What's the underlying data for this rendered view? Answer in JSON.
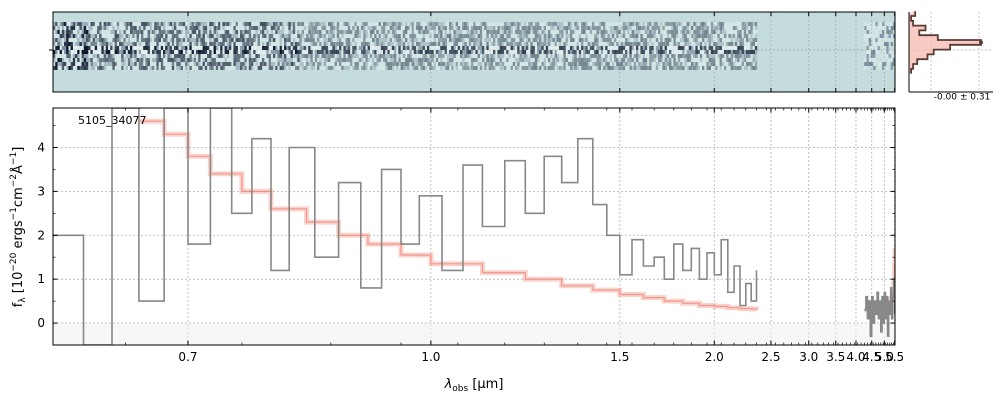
{
  "chart_data": [
    {
      "panel": "2d-spectrum",
      "type": "heatmap",
      "background_color": "#c5dcdc",
      "blue_side_coverage_um": [
        0.6,
        2.35
      ],
      "red_side_coverage_um": [
        4.25,
        5.5
      ],
      "trace_color": "#1a2440"
    },
    {
      "panel": "residual-histogram",
      "type": "histogram",
      "annotation": "-0.00 ± 0.31",
      "step_color": "#5a3a32",
      "fill_color": "#f5b5ac",
      "profile": [
        [
          0.02,
          3
        ],
        [
          0.08,
          1
        ],
        [
          0.14,
          2
        ],
        [
          0.2,
          8
        ],
        [
          0.26,
          5
        ],
        [
          0.32,
          14
        ],
        [
          0.38,
          35
        ],
        [
          0.44,
          20
        ],
        [
          0.5,
          12
        ],
        [
          0.56,
          9
        ],
        [
          0.62,
          4
        ],
        [
          0.68,
          2
        ],
        [
          0.74,
          1
        ]
      ]
    },
    {
      "panel": "1d-spectrum",
      "type": "line",
      "label": "5105_34077",
      "xlabel_main": "λ",
      "xlabel_sub": "obs",
      "xlabel_unit": " [μm]",
      "ylabel": "f_λ [10^-20 ergs^-1 cm^-2 Å^-1]",
      "xlim": [
        0.6,
        5.52
      ],
      "ylim": [
        -0.5,
        4.9
      ],
      "x_scale": "reciprocal",
      "x_ticks": [
        "0.7",
        "1.0",
        "1.5",
        "2.0",
        "2.5",
        "3.0",
        "3.5",
        "4.0",
        "4.5",
        "5.0",
        "5.5"
      ],
      "y_ticks": [
        "0",
        "1",
        "2",
        "3",
        "4"
      ],
      "grid": true,
      "series": [
        {
          "color": "#888888",
          "segments": [
            [
              [
                0.6,
                2.0
              ],
              [
                0.62,
                -0.5
              ],
              [
                0.64,
                4.9
              ],
              [
                0.66,
                0.5
              ],
              [
                0.68,
                4.9
              ],
              [
                0.7,
                1.8
              ],
              [
                0.72,
                4.9
              ],
              [
                0.74,
                2.5
              ],
              [
                0.76,
                4.2
              ],
              [
                0.78,
                1.2
              ],
              [
                0.8,
                4.0
              ],
              [
                0.83,
                1.5
              ],
              [
                0.86,
                3.2
              ],
              [
                0.89,
                0.8
              ],
              [
                0.92,
                3.5
              ],
              [
                0.95,
                1.8
              ],
              [
                0.98,
                2.9
              ],
              [
                1.02,
                1.2
              ],
              [
                1.06,
                3.6
              ],
              [
                1.1,
                2.2
              ],
              [
                1.15,
                3.7
              ],
              [
                1.2,
                2.5
              ],
              [
                1.25,
                3.8
              ],
              [
                1.3,
                3.2
              ],
              [
                1.35,
                4.2
              ],
              [
                1.4,
                2.7
              ],
              [
                1.45,
                2.0
              ],
              [
                1.5,
                1.1
              ],
              [
                1.55,
                1.9
              ],
              [
                1.6,
                1.3
              ],
              [
                1.65,
                1.5
              ],
              [
                1.7,
                1.0
              ],
              [
                1.75,
                1.8
              ],
              [
                1.8,
                1.2
              ],
              [
                1.85,
                1.7
              ],
              [
                1.9,
                1.0
              ],
              [
                1.95,
                1.6
              ],
              [
                2.0,
                1.1
              ],
              [
                2.05,
                1.9
              ],
              [
                2.1,
                0.7
              ],
              [
                2.15,
                1.3
              ],
              [
                2.2,
                0.4
              ],
              [
                2.25,
                0.9
              ],
              [
                2.3,
                0.5
              ],
              [
                2.35,
                1.2
              ]
            ],
            [
              [
                4.25,
                0.3
              ],
              [
                4.3,
                0.6
              ],
              [
                4.35,
                0.1
              ],
              [
                4.4,
                0.5
              ],
              [
                4.45,
                -0.3
              ],
              [
                4.5,
                0.6
              ],
              [
                4.55,
                0.0
              ],
              [
                4.6,
                0.5
              ],
              [
                4.65,
                0.2
              ],
              [
                4.7,
                0.7
              ],
              [
                4.75,
                0.1
              ],
              [
                4.8,
                0.5
              ],
              [
                4.85,
                -0.2
              ],
              [
                4.9,
                0.6
              ],
              [
                4.95,
                0.0
              ],
              [
                5.0,
                0.7
              ],
              [
                5.05,
                0.1
              ],
              [
                5.1,
                0.6
              ],
              [
                5.15,
                -0.3
              ],
              [
                5.2,
                0.5
              ],
              [
                5.25,
                0.2
              ],
              [
                5.3,
                0.8
              ],
              [
                5.35,
                0.1
              ],
              [
                5.4,
                0.6
              ],
              [
                5.45,
                1.0
              ],
              [
                5.5,
                0.2
              ]
            ]
          ]
        },
        {
          "color": "#f08070",
          "segments": [
            [
              [
                0.66,
                4.6
              ],
              [
                0.68,
                4.3
              ],
              [
                0.7,
                3.8
              ],
              [
                0.72,
                3.4
              ],
              [
                0.75,
                3.0
              ],
              [
                0.78,
                2.6
              ],
              [
                0.82,
                2.3
              ],
              [
                0.86,
                2.0
              ],
              [
                0.9,
                1.8
              ],
              [
                0.95,
                1.55
              ],
              [
                1.0,
                1.35
              ],
              [
                1.1,
                1.15
              ],
              [
                1.2,
                1.0
              ],
              [
                1.3,
                0.85
              ],
              [
                1.4,
                0.75
              ],
              [
                1.5,
                0.65
              ],
              [
                1.6,
                0.58
              ],
              [
                1.7,
                0.5
              ],
              [
                1.8,
                0.45
              ],
              [
                1.9,
                0.4
              ],
              [
                2.0,
                0.38
              ],
              [
                2.1,
                0.35
              ],
              [
                2.2,
                0.33
              ],
              [
                2.3,
                0.32
              ],
              [
                2.35,
                0.3
              ]
            ],
            [
              [
                4.25,
                0.3
              ],
              [
                4.5,
                0.35
              ],
              [
                4.75,
                0.38
              ],
              [
                5.0,
                0.4
              ],
              [
                5.2,
                0.45
              ],
              [
                5.3,
                0.55
              ],
              [
                5.4,
                0.7
              ],
              [
                5.45,
                0.9
              ],
              [
                5.5,
                1.3
              ],
              [
                5.52,
                1.7
              ]
            ]
          ]
        }
      ]
    }
  ]
}
